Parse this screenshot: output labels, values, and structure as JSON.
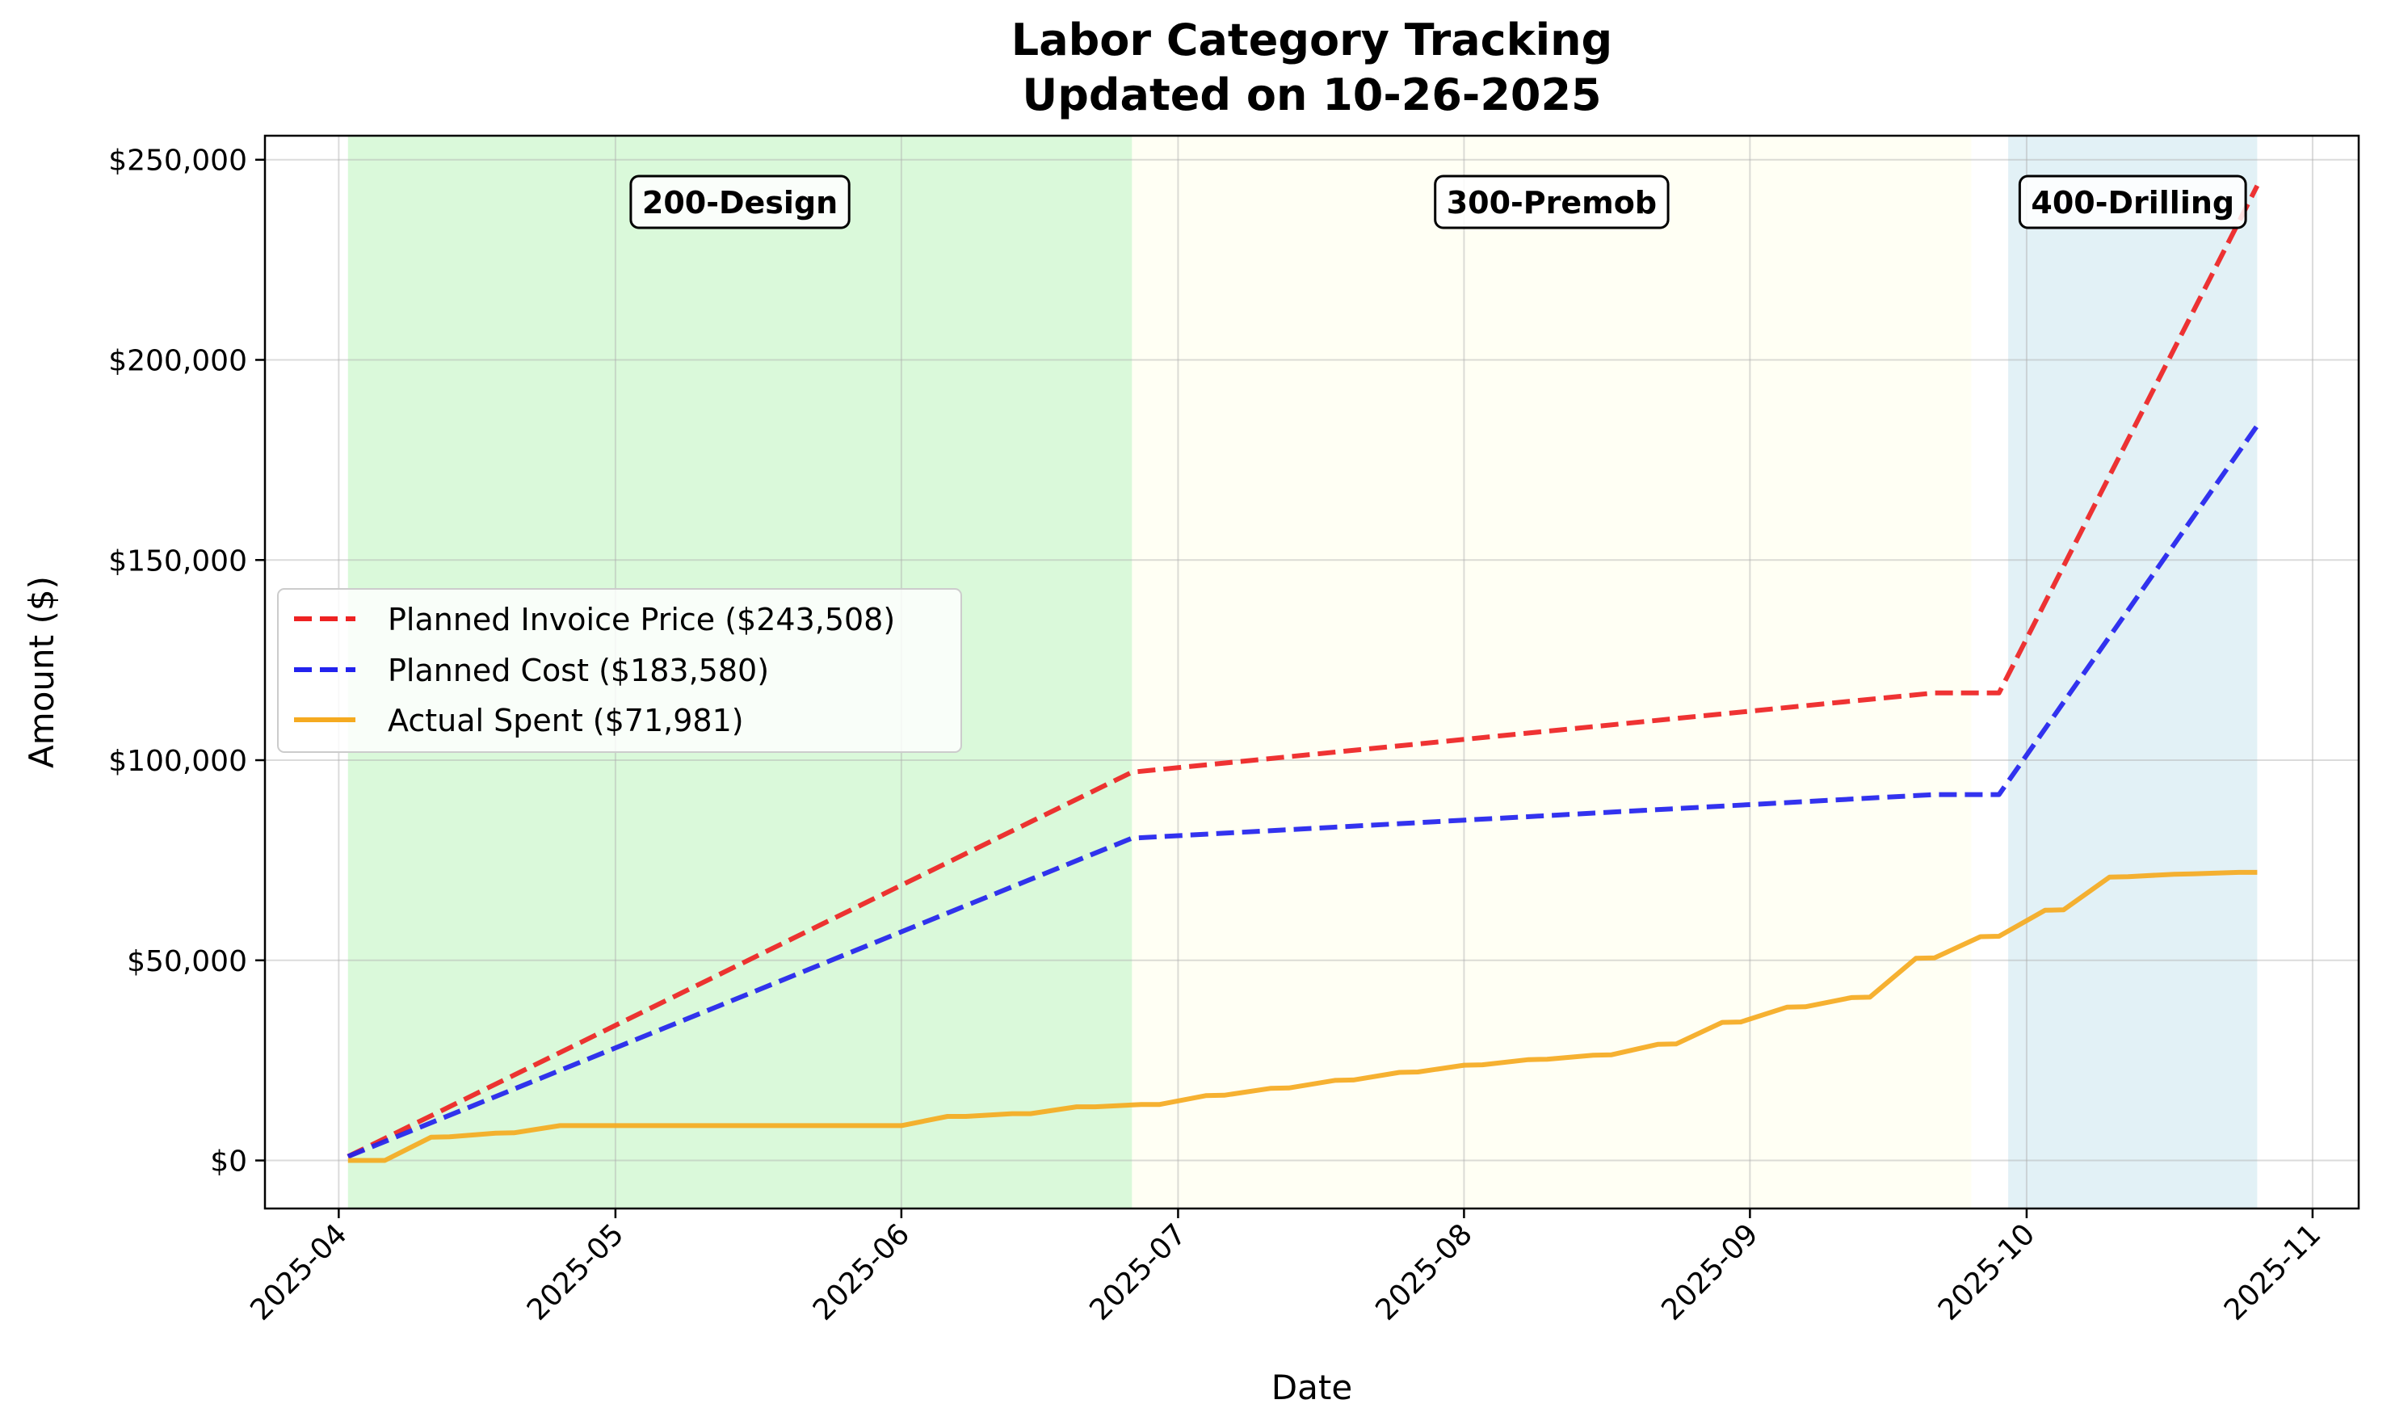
{
  "chart_data": {
    "type": "line",
    "title_line1": "Labor Category Tracking",
    "title_line2": "Updated on 10-26-2025",
    "xlabel": "Date",
    "ylabel": "Amount ($)",
    "x_domain": [
      "2025-03-24",
      "2025-11-06"
    ],
    "ylim": [
      -12000,
      256000
    ],
    "x_ticks": [
      {
        "date": "2025-04-01",
        "label": "2025-04"
      },
      {
        "date": "2025-05-01",
        "label": "2025-05"
      },
      {
        "date": "2025-06-01",
        "label": "2025-06"
      },
      {
        "date": "2025-07-01",
        "label": "2025-07"
      },
      {
        "date": "2025-08-01",
        "label": "2025-08"
      },
      {
        "date": "2025-09-01",
        "label": "2025-09"
      },
      {
        "date": "2025-10-01",
        "label": "2025-10"
      },
      {
        "date": "2025-11-01",
        "label": "2025-11"
      }
    ],
    "y_ticks": [
      {
        "value": 0,
        "label": "$0"
      },
      {
        "value": 50000,
        "label": "$50,000"
      },
      {
        "value": 100000,
        "label": "$100,000"
      },
      {
        "value": 150000,
        "label": "$150,000"
      },
      {
        "value": 200000,
        "label": "$200,000"
      },
      {
        "value": 250000,
        "label": "$250,000"
      }
    ],
    "grid": true,
    "legend_position": "center-left",
    "phases": [
      {
        "label": "200-Design",
        "start": "2025-04-02",
        "end": "2025-06-26",
        "color": "#90EE90",
        "opacity": 0.33
      },
      {
        "label": "300-Premob",
        "start": "2025-06-26",
        "end": "2025-09-25",
        "color": "#FFFFE0",
        "opacity": 0.35
      },
      {
        "label": "400-Drilling",
        "start": "2025-09-29",
        "end": "2025-10-26",
        "color": "#ADD8E6",
        "opacity": 0.35
      }
    ],
    "series": [
      {
        "name": "Planned Invoice Price ($243,508)",
        "color": "#EE2222",
        "dash": "dashed",
        "points": [
          [
            "2025-04-02",
            1000
          ],
          [
            "2025-06-26",
            97000
          ],
          [
            "2025-09-21",
            116800
          ],
          [
            "2025-09-28",
            116800
          ],
          [
            "2025-10-26",
            243508
          ]
        ]
      },
      {
        "name": "Planned Cost ($183,580)",
        "color": "#2222EE",
        "dash": "dashed",
        "points": [
          [
            "2025-04-02",
            1000
          ],
          [
            "2025-06-26",
            80500
          ],
          [
            "2025-09-21",
            91400
          ],
          [
            "2025-09-28",
            91400
          ],
          [
            "2025-10-26",
            183580
          ]
        ]
      },
      {
        "name": "Actual Spent ($71,981)",
        "color": "#F5AA20",
        "dash": "solid",
        "points": [
          [
            "2025-04-02",
            0
          ],
          [
            "2025-04-06",
            0
          ],
          [
            "2025-04-11",
            5800
          ],
          [
            "2025-04-13",
            5900
          ],
          [
            "2025-04-18",
            6800
          ],
          [
            "2025-04-20",
            6900
          ],
          [
            "2025-04-25",
            8700
          ],
          [
            "2025-06-01",
            8700
          ],
          [
            "2025-06-06",
            11000
          ],
          [
            "2025-06-08",
            11000
          ],
          [
            "2025-06-13",
            11700
          ],
          [
            "2025-06-15",
            11700
          ],
          [
            "2025-06-20",
            13400
          ],
          [
            "2025-06-22",
            13400
          ],
          [
            "2025-06-27",
            14000
          ],
          [
            "2025-06-29",
            14000
          ],
          [
            "2025-07-04",
            16200
          ],
          [
            "2025-07-06",
            16300
          ],
          [
            "2025-07-11",
            18000
          ],
          [
            "2025-07-13",
            18100
          ],
          [
            "2025-07-18",
            20000
          ],
          [
            "2025-07-20",
            20100
          ],
          [
            "2025-07-25",
            22000
          ],
          [
            "2025-07-27",
            22100
          ],
          [
            "2025-08-01",
            23800
          ],
          [
            "2025-08-03",
            23900
          ],
          [
            "2025-08-08",
            25200
          ],
          [
            "2025-08-10",
            25300
          ],
          [
            "2025-08-15",
            26300
          ],
          [
            "2025-08-17",
            26400
          ],
          [
            "2025-08-22",
            29000
          ],
          [
            "2025-08-24",
            29100
          ],
          [
            "2025-08-29",
            34500
          ],
          [
            "2025-08-31",
            34600
          ],
          [
            "2025-09-05",
            38300
          ],
          [
            "2025-09-07",
            38400
          ],
          [
            "2025-09-12",
            40700
          ],
          [
            "2025-09-14",
            40800
          ],
          [
            "2025-09-19",
            50500
          ],
          [
            "2025-09-21",
            50600
          ],
          [
            "2025-09-26",
            55900
          ],
          [
            "2025-09-28",
            56000
          ],
          [
            "2025-10-03",
            62500
          ],
          [
            "2025-10-05",
            62600
          ],
          [
            "2025-10-10",
            70800
          ],
          [
            "2025-10-12",
            70900
          ],
          [
            "2025-10-17",
            71500
          ],
          [
            "2025-10-19",
            71600
          ],
          [
            "2025-10-24",
            71981
          ],
          [
            "2025-10-26",
            71981
          ]
        ]
      }
    ]
  }
}
